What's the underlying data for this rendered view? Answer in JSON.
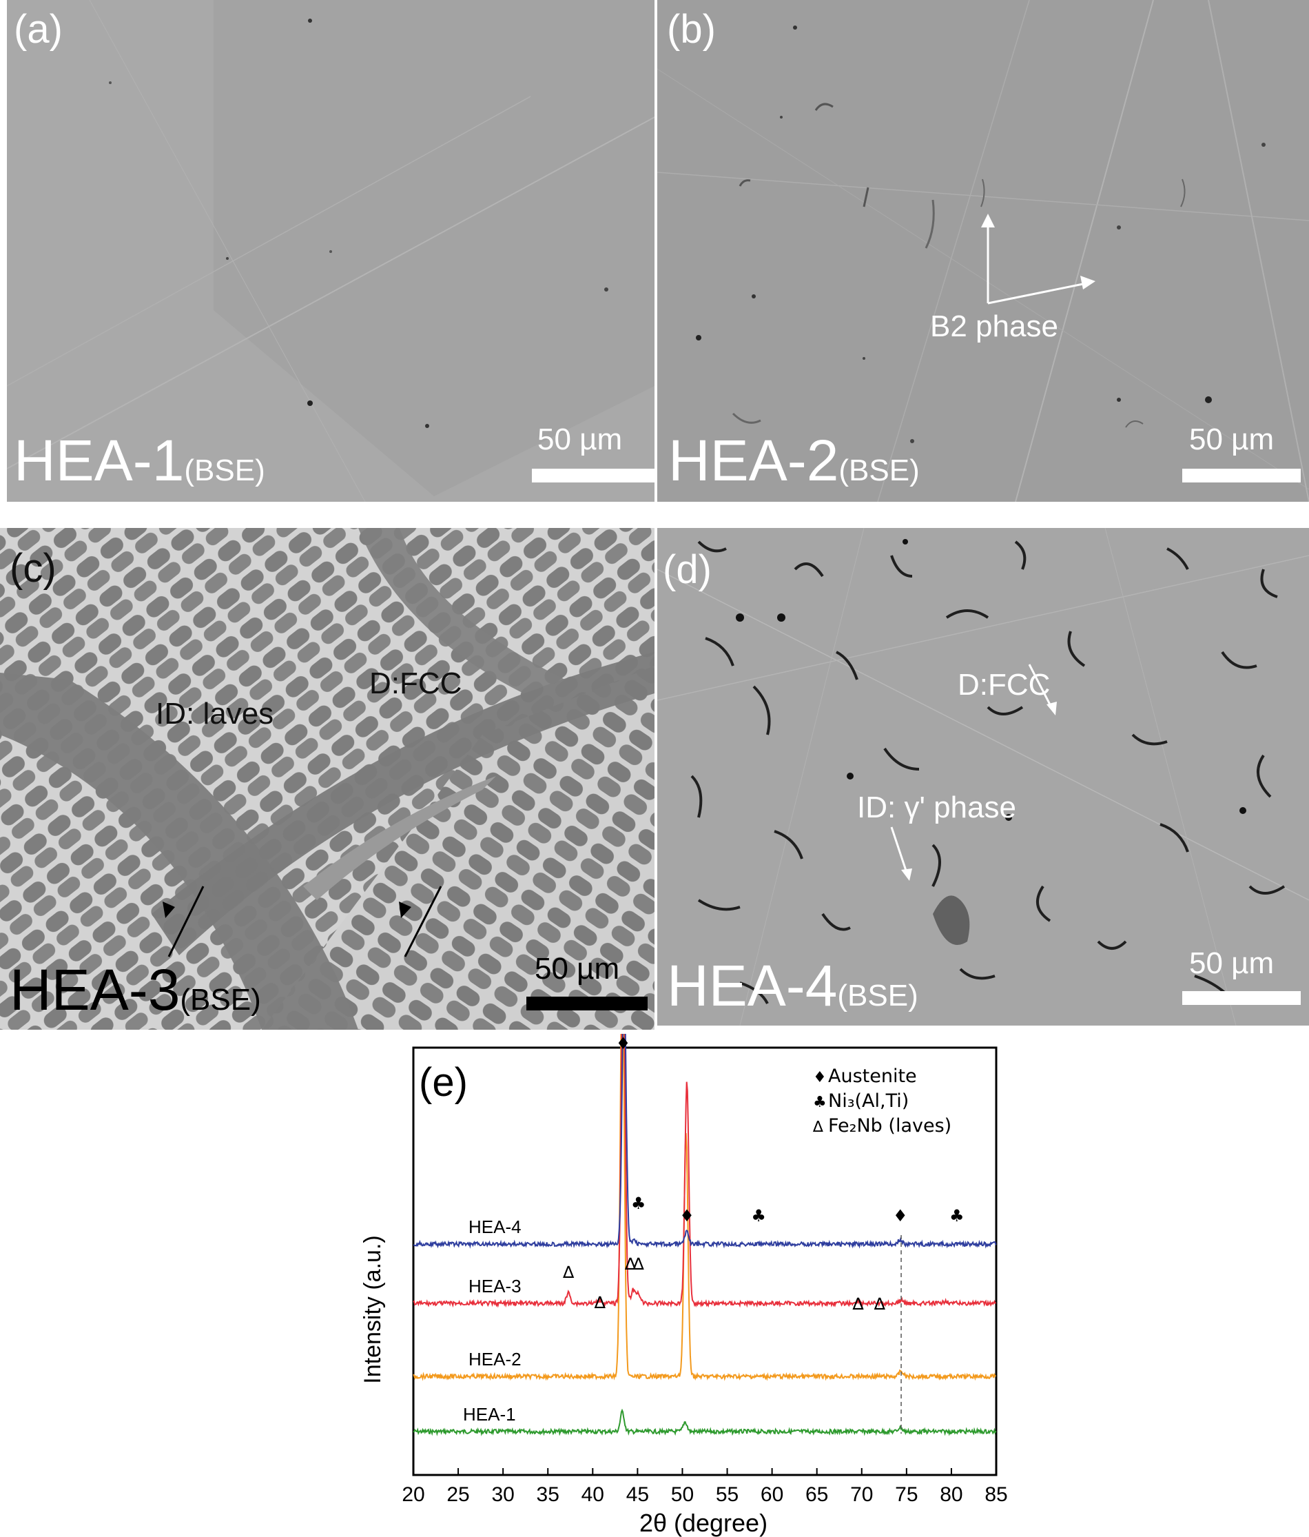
{
  "panels": [
    {
      "tag": "(a)",
      "sample": "HEA-1",
      "mode": "(BSE)",
      "scale": "50 µm",
      "annotations": []
    },
    {
      "tag": "(b)",
      "sample": "HEA-2",
      "mode": "(BSE)",
      "scale": "50 µm",
      "annotations": [
        "B2 phase"
      ]
    },
    {
      "tag": "(c)",
      "sample": "HEA-3",
      "mode": "(BSE)",
      "scale": "50 µm",
      "annotations": [
        "ID: laves",
        "D:FCC"
      ]
    },
    {
      "tag": "(d)",
      "sample": "HEA-4",
      "mode": "(BSE)",
      "scale": "50 µm",
      "annotations": [
        "D:FCC",
        "ID: γ' phase"
      ]
    }
  ],
  "colors": {
    "hea1": "#2e9a2e",
    "hea2": "#f39a1e",
    "hea3": "#e8303c",
    "hea4": "#2f3e9e"
  },
  "chart_data": {
    "type": "line",
    "panel_tag": "(e)",
    "xlabel": "2θ (degree)",
    "ylabel": "Intensity (a.u.)",
    "xlim": [
      20,
      85
    ],
    "xticks": [
      20,
      25,
      30,
      35,
      40,
      45,
      50,
      55,
      60,
      65,
      70,
      75,
      80,
      85
    ],
    "legend": [
      {
        "symbol": "♦",
        "text": "Austenite"
      },
      {
        "symbol": "♣",
        "text": "Ni₃(Al,Ti)"
      },
      {
        "symbol": "∆",
        "text": "Fe₂Nb (laves)"
      }
    ],
    "legend_position": "top-right",
    "series": [
      {
        "name": "HEA-1",
        "peaks": [
          {
            "x": 43.3,
            "h": 0.045
          },
          {
            "x": 50.3,
            "h": 0.022
          },
          {
            "x": 74.3,
            "h": 0.01
          }
        ]
      },
      {
        "name": "HEA-2",
        "peaks": [
          {
            "x": 43.3,
            "h": 0.95
          },
          {
            "x": 50.4,
            "h": 0.55
          },
          {
            "x": 74.4,
            "h": 0.012
          }
        ]
      },
      {
        "name": "HEA-3",
        "peaks": [
          {
            "x": 37.3,
            "h": 0.024
          },
          {
            "x": 40.8,
            "h": 0.008
          },
          {
            "x": 43.4,
            "h": 0.8
          },
          {
            "x": 44.5,
            "h": 0.03
          },
          {
            "x": 45.1,
            "h": 0.024
          },
          {
            "x": 50.5,
            "h": 0.5
          },
          {
            "x": 69.6,
            "h": 0.006
          },
          {
            "x": 74.4,
            "h": 0.007
          },
          {
            "x": 79.4,
            "h": 0.006
          }
        ]
      },
      {
        "name": "HEA-4",
        "peaks": [
          {
            "x": 43.5,
            "h": 0.6
          },
          {
            "x": 44.6,
            "h": 0.01
          },
          {
            "x": 50.5,
            "h": 0.03
          },
          {
            "x": 74.3,
            "h": 0.01
          }
        ]
      }
    ],
    "markers": [
      {
        "symbol": "♦",
        "x": 43.4,
        "series": "top"
      },
      {
        "symbol": "♣",
        "x": 45.1,
        "series": "HEA-4"
      },
      {
        "symbol": "♦",
        "x": 50.5,
        "series": "HEA-4"
      },
      {
        "symbol": "♣",
        "x": 58.5,
        "series": "HEA-4"
      },
      {
        "symbol": "♦",
        "x": 74.3,
        "series": "HEA-4"
      },
      {
        "symbol": "♣",
        "x": 80.6,
        "series": "HEA-4"
      },
      {
        "symbol": "∆",
        "x": 37.3,
        "series": "HEA-3"
      },
      {
        "symbol": "∆",
        "x": 40.8,
        "series": "HEA-3"
      },
      {
        "symbol": "∆",
        "x": 44.2,
        "series": "HEA-3"
      },
      {
        "symbol": "∆",
        "x": 45.1,
        "series": "HEA-3"
      },
      {
        "symbol": "∆",
        "x": 69.6,
        "series": "HEA-3"
      },
      {
        "symbol": "∆",
        "x": 72.0,
        "series": "HEA-3"
      }
    ],
    "reference_line_x": 74.4
  }
}
